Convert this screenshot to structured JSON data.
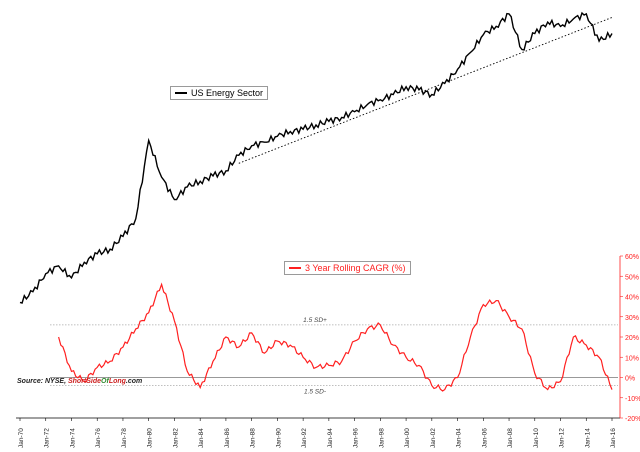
{
  "chart_data": [
    {
      "type": "line",
      "title": "",
      "series": [
        {
          "name": "US Energy Sector",
          "color": "#000000",
          "x": [
            "Jan-70",
            "Jan-71",
            "Jan-72",
            "Jan-73",
            "Jan-74",
            "Jan-75",
            "Jan-76",
            "Jan-77",
            "Jan-78",
            "Jan-79",
            "Jan-80",
            "Jan-81",
            "Jan-82",
            "Jan-83",
            "Jan-84",
            "Jan-85",
            "Jan-86",
            "Jan-87",
            "Jan-88",
            "Jan-89",
            "Jan-90",
            "Jan-91",
            "Jan-92",
            "Jan-93",
            "Jan-94",
            "Jan-95",
            "Jan-96",
            "Jan-97",
            "Jan-98",
            "Jan-99",
            "Jan-00",
            "Jan-01",
            "Jan-02",
            "Jan-03",
            "Jan-04",
            "Jan-05",
            "Jan-06",
            "Jan-07",
            "Jan-08",
            "Jan-09",
            "Jan-10",
            "Jan-11",
            "Jan-12",
            "Jan-13",
            "Jan-14",
            "Jan-15",
            "Jan-16"
          ],
          "index_level": [
            30,
            34,
            42,
            46,
            40,
            48,
            53,
            56,
            65,
            80,
            200,
            130,
            100,
            116,
            124,
            132,
            140,
            168,
            188,
            196,
            210,
            222,
            228,
            240,
            250,
            262,
            280,
            305,
            322,
            342,
            375,
            362,
            342,
            390,
            460,
            560,
            690,
            760,
            880,
            580,
            700,
            800,
            760,
            830,
            880,
            640,
            700
          ]
        }
      ],
      "yscale": "log",
      "trendline": {
        "style": "dotted",
        "from": "Jan-87",
        "to": "Jan-16"
      }
    },
    {
      "type": "line",
      "series": [
        {
          "name": "3 Year Rolling CAGR (%)",
          "color": "#ff2020",
          "x": [
            "Jan-73",
            "Jan-74",
            "Jan-75",
            "Jan-76",
            "Jan-77",
            "Jan-78",
            "Jan-79",
            "Jan-80",
            "Jan-81",
            "Jan-82",
            "Jan-83",
            "Jan-84",
            "Jan-85",
            "Jan-86",
            "Jan-87",
            "Jan-88",
            "Jan-89",
            "Jan-90",
            "Jan-91",
            "Jan-92",
            "Jan-93",
            "Jan-94",
            "Jan-95",
            "Jan-96",
            "Jan-97",
            "Jan-98",
            "Jan-99",
            "Jan-00",
            "Jan-01",
            "Jan-02",
            "Jan-03",
            "Jan-04",
            "Jan-05",
            "Jan-06",
            "Jan-07",
            "Jan-08",
            "Jan-09",
            "Jan-10",
            "Jan-11",
            "Jan-12",
            "Jan-13",
            "Jan-14",
            "Jan-15",
            "Jan-16"
          ],
          "values": [
            20,
            3,
            -2,
            5,
            8,
            15,
            24,
            32,
            46,
            28,
            3,
            -5,
            8,
            20,
            15,
            22,
            12,
            18,
            16,
            10,
            5,
            6,
            8,
            18,
            24,
            26,
            16,
            10,
            6,
            -4,
            -6,
            0,
            20,
            36,
            38,
            30,
            24,
            2,
            -6,
            -2,
            20,
            16,
            10,
            -6
          ]
        }
      ],
      "ylim": [
        -20,
        60
      ],
      "yticks": [
        "-20%",
        "-10%",
        "0%",
        "10%",
        "20%",
        "30%",
        "40%",
        "50%",
        "60%"
      ],
      "reference_lines": [
        {
          "label": "1.5 SD+",
          "value": 26
        },
        {
          "label": "1.5 SD-",
          "value": -4
        },
        {
          "label": "",
          "value": 0
        }
      ]
    }
  ],
  "x_tick_labels": [
    "Jan-70",
    "Jan-72",
    "Jan-74",
    "Jan-76",
    "Jan-78",
    "Jan-80",
    "Jan-82",
    "Jan-84",
    "Jan-86",
    "Jan-88",
    "Jan-90",
    "Jan-92",
    "Jan-94",
    "Jan-96",
    "Jan-98",
    "Jan-00",
    "Jan-02",
    "Jan-04",
    "Jan-06",
    "Jan-08",
    "Jan-10",
    "Jan-12",
    "Jan-14",
    "Jan-16"
  ],
  "legend": {
    "energy": "US Energy Sector",
    "cagr": "3 Year Rolling CAGR (%)"
  },
  "source": {
    "prefix": "Source: NYSE, ",
    "brand_a": "ShortSide",
    "brand_b": "Of",
    "brand_c": "Long",
    "suffix": ".com"
  }
}
